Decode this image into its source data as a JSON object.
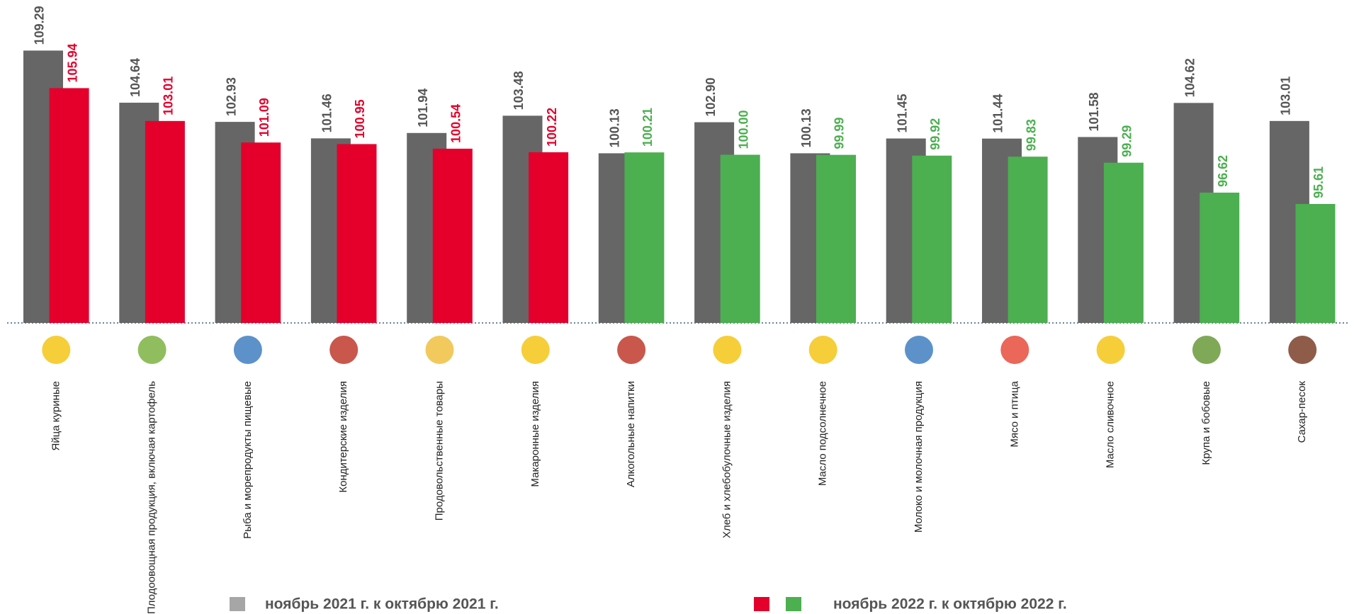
{
  "chart_data": {
    "type": "bar",
    "categories": [
      "Яйца куриные",
      "Плодоовощная продукция, включая картофель",
      "Рыба и морепродукты пищевые",
      "Кондитерские изделия",
      "Продовольственные товары",
      "Макаронные изделия",
      "Алкогольные напитки",
      "Хлеб и хлебобулочные изделия",
      "Масло подсолнечное",
      "Молоко и молочная продукция",
      "Мясо и птица",
      "Масло сливочное",
      "Крупа и бобовые",
      "Сахар-песок"
    ],
    "series": [
      {
        "name": "ноябрь 2021 г. к октябрю  2021 г.",
        "color": "#666666",
        "legend_color": "#a6a6a6",
        "label_color": "#555555",
        "values": [
          109.29,
          104.64,
          102.93,
          101.46,
          101.94,
          103.48,
          100.13,
          102.9,
          100.13,
          101.45,
          101.44,
          101.58,
          104.62,
          103.01
        ],
        "value_labels": [
          "109.29",
          "104.64",
          "102.93",
          "101.46",
          "101.94",
          "103.48",
          "100.13",
          "102.90",
          "100.13",
          "101.45",
          "101.44",
          "101.58",
          "104.62",
          "103.01"
        ]
      },
      {
        "name": "ноябрь 2022 г. к октябрю 2022 г.",
        "colors": [
          "#e4002b",
          "#e4002b",
          "#e4002b",
          "#e4002b",
          "#e4002b",
          "#e4002b",
          "#4caf50",
          "#4caf50",
          "#4caf50",
          "#4caf50",
          "#4caf50",
          "#4caf50",
          "#4caf50",
          "#4caf50"
        ],
        "values": [
          105.94,
          103.01,
          101.09,
          100.95,
          100.54,
          100.22,
          100.21,
          100.0,
          99.99,
          99.92,
          99.83,
          99.29,
          96.62,
          95.61
        ],
        "value_labels": [
          "105.94",
          "103.01",
          "101.09",
          "100.95",
          "100.54",
          "100.22",
          "100.21",
          "100.00",
          "99.99",
          "99.92",
          "99.83",
          "99.29",
          "96.62",
          "95.61"
        ]
      }
    ],
    "ylim": [
      85,
      113.8
    ]
  }
}
